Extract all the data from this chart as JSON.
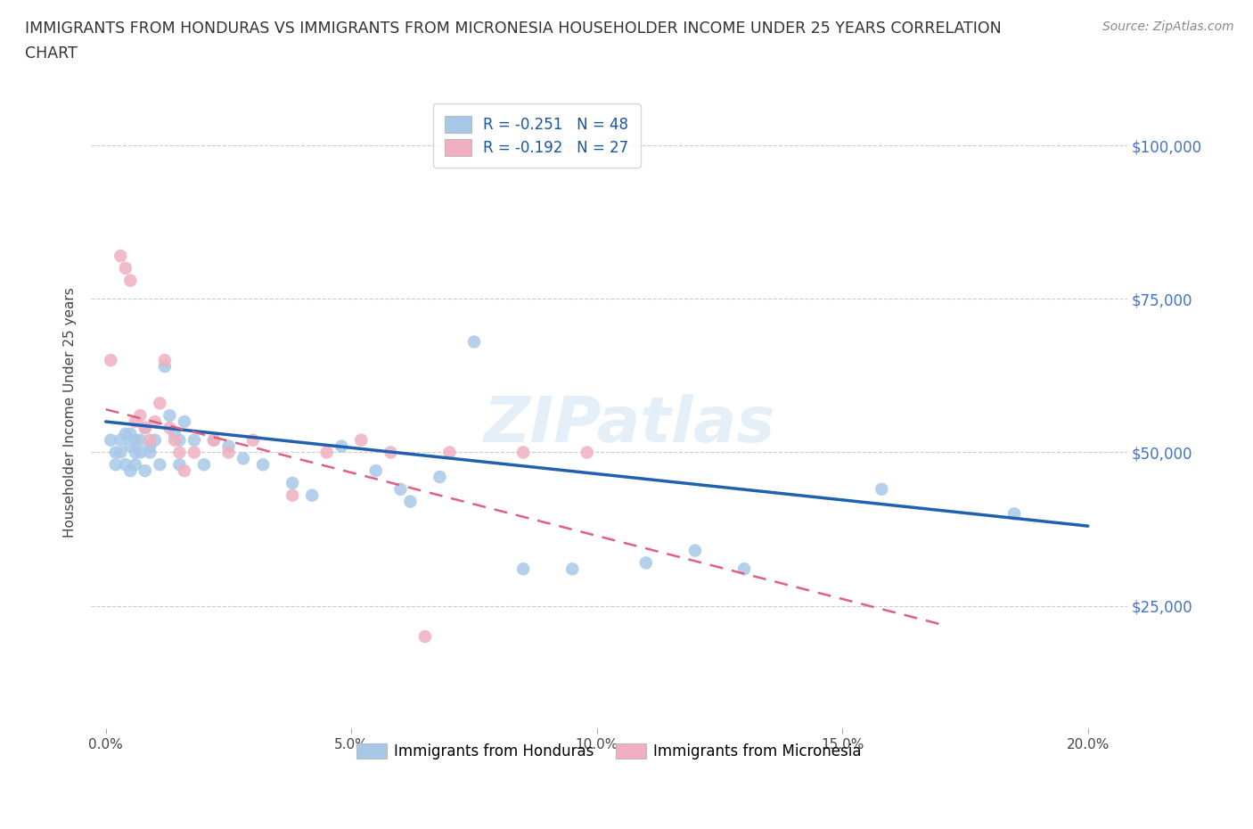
{
  "title_line1": "IMMIGRANTS FROM HONDURAS VS IMMIGRANTS FROM MICRONESIA HOUSEHOLDER INCOME UNDER 25 YEARS CORRELATION",
  "title_line2": "CHART",
  "source_text": "Source: ZipAtlas.com",
  "ylabel": "Householder Income Under 25 years",
  "xlabel_ticks": [
    "0.0%",
    "5.0%",
    "10.0%",
    "15.0%",
    "20.0%"
  ],
  "xlabel_vals": [
    0.0,
    0.05,
    0.1,
    0.15,
    0.2
  ],
  "ytick_labels": [
    "$25,000",
    "$50,000",
    "$75,000",
    "$100,000"
  ],
  "ytick_vals": [
    25000,
    50000,
    75000,
    100000
  ],
  "xlim": [
    -0.003,
    0.208
  ],
  "ylim": [
    5000,
    108000
  ],
  "R_honduras": -0.251,
  "N_honduras": 48,
  "R_micronesia": -0.192,
  "N_micronesia": 27,
  "color_honduras": "#a8c8e8",
  "color_micronesia": "#f0b0c0",
  "line_color_honduras": "#2060b0",
  "line_color_micronesia": "#e06080",
  "watermark": "ZIPatlas",
  "honduras_x": [
    0.001,
    0.002,
    0.002,
    0.003,
    0.003,
    0.004,
    0.004,
    0.005,
    0.005,
    0.005,
    0.006,
    0.006,
    0.006,
    0.007,
    0.007,
    0.008,
    0.008,
    0.009,
    0.009,
    0.01,
    0.011,
    0.012,
    0.013,
    0.014,
    0.015,
    0.015,
    0.016,
    0.018,
    0.02,
    0.022,
    0.025,
    0.028,
    0.032,
    0.038,
    0.042,
    0.048,
    0.055,
    0.06,
    0.062,
    0.068,
    0.075,
    0.085,
    0.095,
    0.11,
    0.12,
    0.13,
    0.158,
    0.185
  ],
  "honduras_y": [
    52000,
    50000,
    48000,
    52000,
    50000,
    53000,
    48000,
    51000,
    53000,
    47000,
    50000,
    52000,
    48000,
    52000,
    50000,
    54000,
    47000,
    51000,
    50000,
    52000,
    48000,
    64000,
    56000,
    53000,
    52000,
    48000,
    55000,
    52000,
    48000,
    52000,
    51000,
    49000,
    48000,
    45000,
    43000,
    51000,
    47000,
    44000,
    42000,
    46000,
    68000,
    31000,
    31000,
    32000,
    34000,
    31000,
    44000,
    40000
  ],
  "micronesia_x": [
    0.001,
    0.003,
    0.004,
    0.005,
    0.006,
    0.007,
    0.008,
    0.009,
    0.01,
    0.011,
    0.012,
    0.013,
    0.014,
    0.015,
    0.016,
    0.018,
    0.022,
    0.025,
    0.03,
    0.038,
    0.045,
    0.052,
    0.058,
    0.065,
    0.07,
    0.085,
    0.098
  ],
  "micronesia_y": [
    65000,
    82000,
    80000,
    78000,
    55000,
    56000,
    54000,
    52000,
    55000,
    58000,
    65000,
    54000,
    52000,
    50000,
    47000,
    50000,
    52000,
    50000,
    52000,
    43000,
    50000,
    52000,
    50000,
    20000,
    50000,
    50000,
    50000
  ],
  "line_h_x0": 0.0,
  "line_h_y0": 55000,
  "line_h_x1": 0.2,
  "line_h_y1": 38000,
  "line_m_x0": 0.0,
  "line_m_y0": 57000,
  "line_m_x1": 0.17,
  "line_m_y1": 22000
}
